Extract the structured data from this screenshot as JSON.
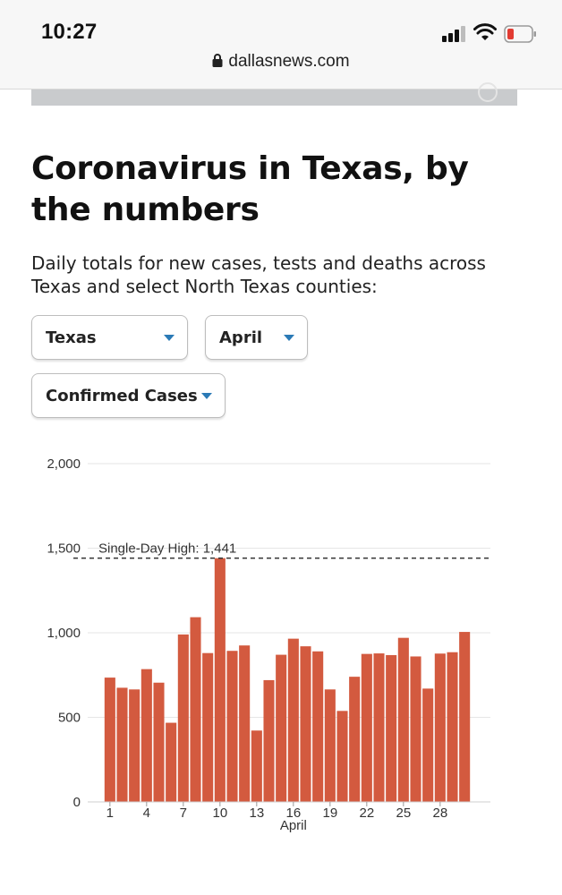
{
  "status_bar": {
    "time": "10:27",
    "url": "dallasnews.com"
  },
  "article": {
    "headline": "Coronavirus in Texas, by the numbers",
    "description": "Daily totals for new cases, tests and deaths across Texas and select North Texas counties:"
  },
  "filters": {
    "region": "Texas",
    "month": "April",
    "metric": "Confirmed Cases"
  },
  "colors": {
    "bar": "#d35a3f",
    "caret": "#2b7ab6",
    "grid": "#e6e6e6"
  },
  "chart_data": {
    "type": "bar",
    "x": [
      1,
      2,
      3,
      4,
      5,
      6,
      7,
      8,
      9,
      10,
      11,
      12,
      13,
      14,
      15,
      16,
      17,
      18,
      19,
      20,
      21,
      22,
      23,
      24,
      25,
      26,
      27,
      28,
      29,
      30
    ],
    "values": [
      735,
      675,
      665,
      785,
      705,
      468,
      990,
      1092,
      880,
      1441,
      893,
      925,
      422,
      720,
      870,
      965,
      920,
      890,
      665,
      538,
      740,
      875,
      878,
      868,
      970,
      860,
      670,
      877,
      885,
      1005
    ],
    "xticks": [
      1,
      4,
      7,
      10,
      13,
      16,
      19,
      22,
      25,
      28
    ],
    "xlabel": "April",
    "ylabel": "",
    "yticks": [
      0,
      500,
      1000,
      1500,
      2000
    ],
    "ytick_labels": [
      "0",
      "500",
      "1,000",
      "1,500",
      "2,000"
    ],
    "ylim": [
      0,
      2000
    ],
    "annotation": {
      "text": "Single-Day High: 1,441",
      "value": 1441
    },
    "grid": true
  }
}
